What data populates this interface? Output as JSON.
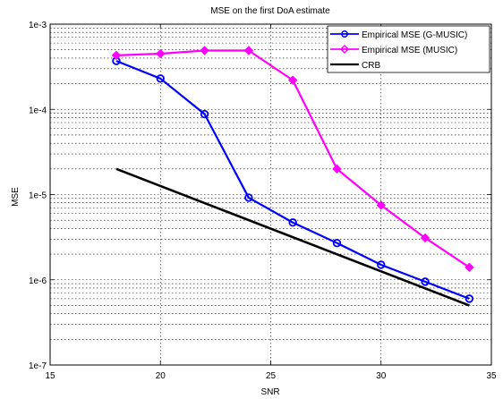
{
  "chart_data": {
    "type": "line",
    "title": "MSE on the first DoA estimate",
    "xlabel": "SNR",
    "ylabel": "MSE",
    "xlim": [
      15,
      35
    ],
    "ylim": [
      1e-07,
      0.001
    ],
    "yscale": "log",
    "x_ticks": [
      15,
      20,
      25,
      30,
      35
    ],
    "x_tick_labels": [
      "15",
      "20",
      "25",
      "30",
      "35"
    ],
    "y_ticks": [
      1e-07,
      1e-06,
      1e-05,
      0.0001,
      0.001
    ],
    "y_tick_labels": [
      "1e-7",
      "1e-6",
      "1e-5",
      "1e-4",
      "1e-3"
    ],
    "grid": true,
    "legend_position": "top-right",
    "series": [
      {
        "name": "Empirical MSE (G-MUSIC)",
        "color": "#0000ff",
        "marker": "circle",
        "x": [
          18,
          20,
          22,
          24,
          26,
          28,
          30,
          32,
          34
        ],
        "y": [
          0.00037,
          0.00023,
          8.8e-05,
          9.2e-06,
          4.7e-06,
          2.7e-06,
          1.5e-06,
          9.5e-07,
          6e-07
        ]
      },
      {
        "name": "Empirical MSE (MUSIC)",
        "color": "#ff00ff",
        "marker": "diamond",
        "x": [
          18,
          20,
          22,
          24,
          26,
          28,
          30,
          32,
          34
        ],
        "y": [
          0.00043,
          0.00045,
          0.00049,
          0.00049,
          0.00022,
          2e-05,
          7.5e-06,
          3.1e-06,
          1.4e-06
        ]
      },
      {
        "name": "CRB",
        "color": "#000000",
        "marker": "none",
        "x": [
          18,
          34
        ],
        "y": [
          2e-05,
          5e-07
        ]
      }
    ]
  }
}
